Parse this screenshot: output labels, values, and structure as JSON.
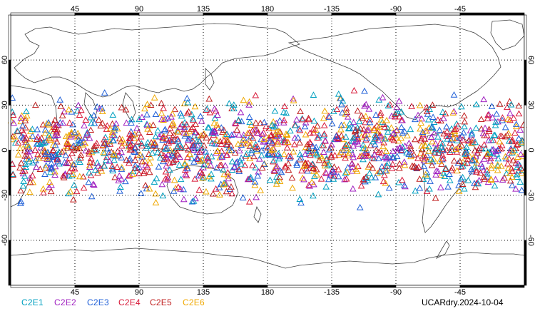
{
  "chart_data": {
    "type": "scatter",
    "title": "",
    "projection": "cylindrical equidistant, centered at 180",
    "x_range": [
      0,
      360
    ],
    "y_range": [
      -90,
      90
    ],
    "grid": "dotted, every 45 deg longitude and 30 deg latitude",
    "marker": "open triangle",
    "x_tick_labels": [
      "45",
      "90",
      "135",
      "180",
      "-135",
      "-90",
      "-45"
    ],
    "y_tick_labels": [
      "60",
      "30",
      "0",
      "-30",
      "-60"
    ],
    "observation_latitude_band": [
      -42,
      45
    ],
    "series": [
      {
        "name": "C2E1",
        "color": "#00a0c0"
      },
      {
        "name": "C2E2",
        "color": "#a020c0"
      },
      {
        "name": "C2E3",
        "color": "#2060d8"
      },
      {
        "name": "C2E4",
        "color": "#d81838"
      },
      {
        "name": "C2E5",
        "color": "#c02020"
      },
      {
        "name": "C2E6",
        "color": "#f0a800"
      }
    ]
  },
  "legend": {
    "items": [
      {
        "label": "C2E1",
        "color": "#00a0c0"
      },
      {
        "label": "C2E2",
        "color": "#a020c0"
      },
      {
        "label": "C2E3",
        "color": "#2060d8"
      },
      {
        "label": "C2E4",
        "color": "#d81838"
      },
      {
        "label": "C2E5",
        "color": "#c02020"
      },
      {
        "label": "C2E6",
        "color": "#f0a800"
      }
    ]
  },
  "product_label": "UCARdry.2024-10-04"
}
